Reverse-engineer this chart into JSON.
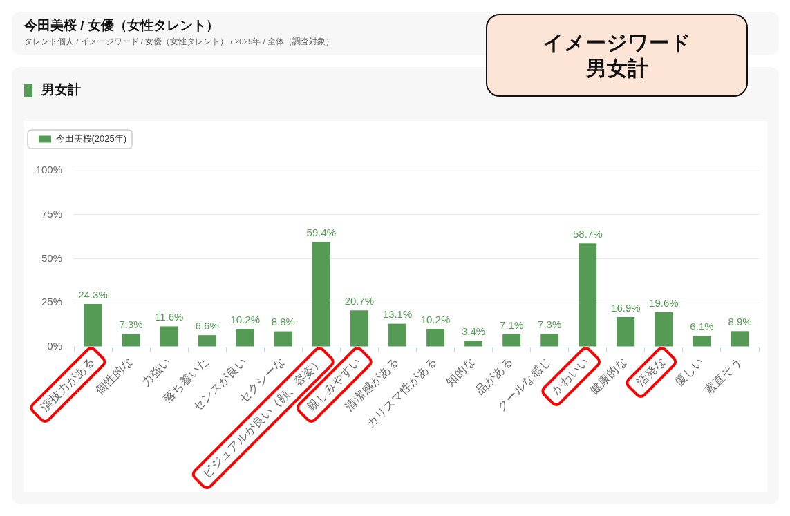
{
  "chart_data": {
    "type": "bar",
    "title": "今田美桜 / 女優（女性タレント）",
    "subtitle": "タレント個人 / イメージワード / 女優（女性タレント） / 2025年 / 全体（調査対象）",
    "annotations": [
      "男女計",
      "イメージワード",
      "男女計"
    ],
    "categories": [
      "演技力がある",
      "個性的な",
      "力強い",
      "落ち着いた",
      "センスが良い",
      "セクシーな",
      "ビジュアルが良い（顔、容姿）",
      "親しみやすい",
      "清潔感がある",
      "カリスマ性がある",
      "知的な",
      "品がある",
      "クールな感じ",
      "かわいい",
      "健康的な",
      "活発な",
      "優しい",
      "素直そう"
    ],
    "series": [
      {
        "name": "今田美桜(2025年)",
        "color": "#559b55",
        "values": [
          24.3,
          7.3,
          11.6,
          6.6,
          10.2,
          8.8,
          59.4,
          20.7,
          13.1,
          10.2,
          3.4,
          7.1,
          7.3,
          58.7,
          16.9,
          19.6,
          6.1,
          8.9
        ],
        "value_labels": [
          "24.3%",
          "7.3%",
          "11.6%",
          "6.6%",
          "10.2%",
          "8.8%",
          "59.4%",
          "20.7%",
          "13.1%",
          "10.2%",
          "3.4%",
          "7.1%",
          "7.3%",
          "58.7%",
          "16.9%",
          "19.6%",
          "6.1%",
          "8.9%"
        ]
      }
    ],
    "ylim": [
      0,
      100
    ],
    "yticks": [
      {
        "value": 0,
        "label": "0%"
      },
      {
        "value": 25,
        "label": "25%"
      },
      {
        "value": 50,
        "label": "50%"
      },
      {
        "value": 75,
        "label": "75%"
      },
      {
        "value": 100,
        "label": "100%"
      }
    ],
    "grid": "y",
    "legend": "top left"
  }
}
